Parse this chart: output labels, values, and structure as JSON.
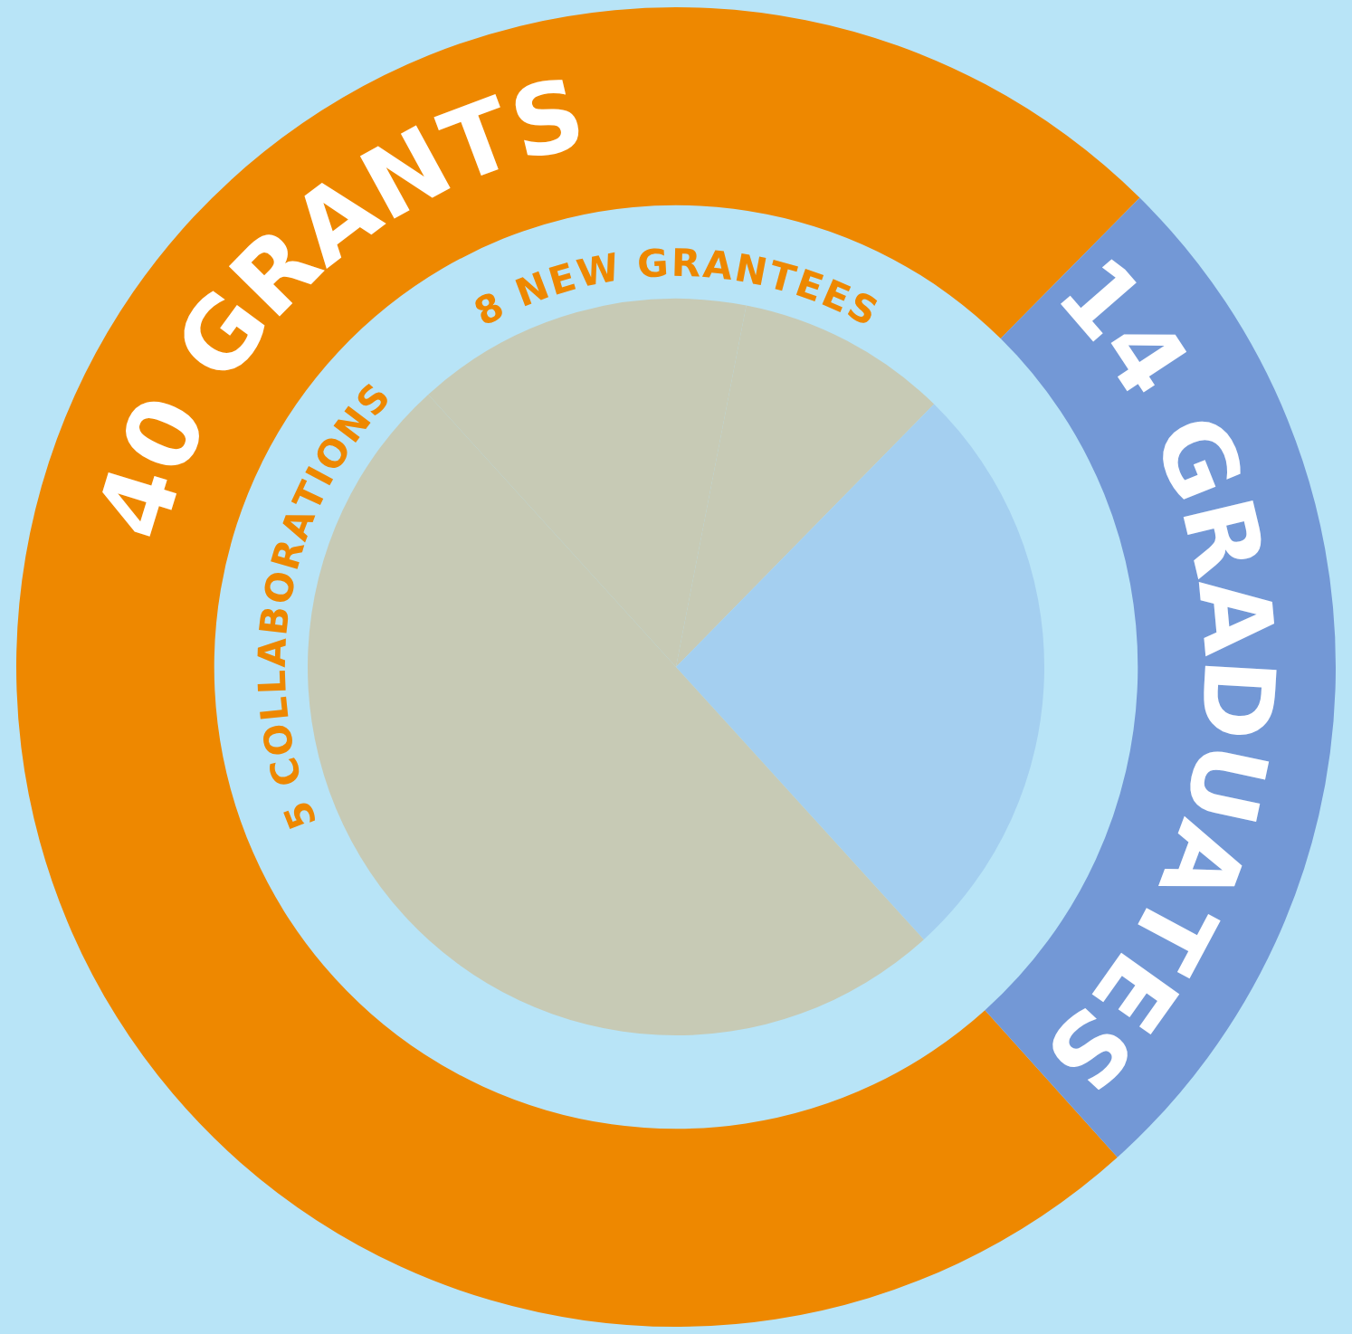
{
  "chart_data": [
    {
      "type": "donut",
      "categories": [
        "40 GRANTS",
        "14 GRADUATES"
      ],
      "values": [
        40,
        14
      ],
      "colors": [
        "#ee8800",
        "#7398d6"
      ]
    },
    {
      "type": "pie",
      "categories": [
        null,
        null,
        null,
        null
      ],
      "values": [
        9.3,
        25.9,
        50,
        14.8
      ],
      "colors": [
        "#c7cab5",
        "#a4cff0",
        "#c7cab5",
        "#c7cab5"
      ],
      "annotations": [
        "8 NEW GRANTEES",
        "5 COLLABORATIONS"
      ]
    }
  ]
}
